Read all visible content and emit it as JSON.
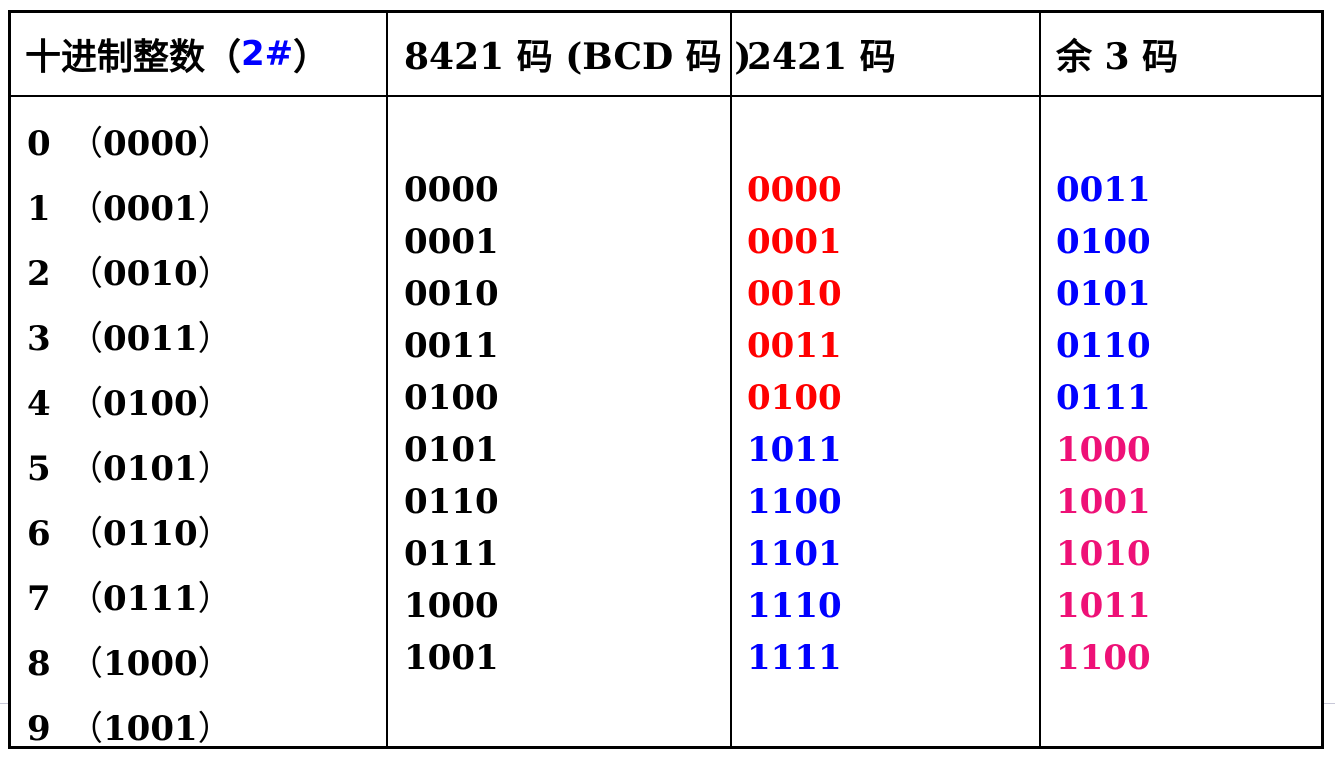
{
  "headers": {
    "decimal_prefix": "十进制整数（",
    "decimal_hash": "2#",
    "decimal_suffix": "）",
    "bcd": "8421 码 (BCD 码 )",
    "code2421": "2421 码",
    "excess3": "余 3 码"
  },
  "decimal_rows": [
    {
      "digit": "0",
      "binary": "0000"
    },
    {
      "digit": "1",
      "binary": "0001"
    },
    {
      "digit": "2",
      "binary": "0010"
    },
    {
      "digit": "3",
      "binary": "0011"
    },
    {
      "digit": "4",
      "binary": "0100"
    },
    {
      "digit": "5",
      "binary": "0101"
    },
    {
      "digit": "6",
      "binary": "0110"
    },
    {
      "digit": "7",
      "binary": "0111"
    },
    {
      "digit": "8",
      "binary": "1000"
    },
    {
      "digit": "9",
      "binary": "1001"
    }
  ],
  "bcd_codes": [
    "0000",
    "0001",
    "0010",
    "0011",
    "0100",
    "0101",
    "0110",
    "0111",
    "1000",
    "1001"
  ],
  "codes_2421": [
    "0000",
    "0001",
    "0010",
    "0011",
    "0100",
    "1011",
    "1100",
    "1101",
    "1110",
    "1111"
  ],
  "codes_excess3": [
    "0011",
    "0100",
    "0101",
    "0110",
    "0111",
    "1000",
    "1001",
    "1010",
    "1011",
    "1100"
  ],
  "colors": {
    "black": "#000000",
    "red": "#ff0000",
    "blue": "#0000ff",
    "pink": "#ee1177",
    "hash_blue": "#0000ff"
  },
  "color_groups": {
    "codes_2421": [
      "red",
      "red",
      "red",
      "red",
      "red",
      "blue",
      "blue",
      "blue",
      "blue",
      "blue"
    ],
    "codes_excess3": [
      "blue",
      "blue",
      "blue",
      "blue",
      "blue",
      "pink",
      "pink",
      "pink",
      "pink",
      "pink"
    ]
  }
}
